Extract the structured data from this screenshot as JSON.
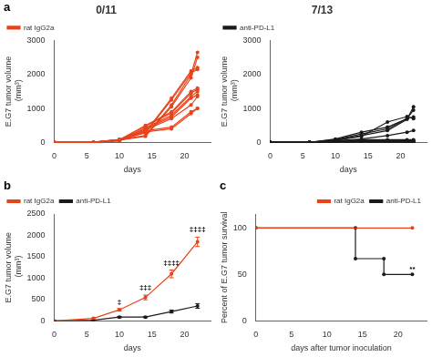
{
  "chart_data": [
    {
      "type": "line",
      "title": "0/11",
      "annotations": [
        {
          "text": "a"
        }
      ],
      "xlabel": "days",
      "ylabel": "E.G7 tumor volume\n (mm³)",
      "x": [
        0,
        6,
        10,
        14,
        18,
        21,
        22
      ],
      "series": [
        {
          "name": "rat IgG2a",
          "color": "#E8431A",
          "values": [
            0,
            5,
            80,
            200,
            1100,
            2000,
            2650
          ]
        },
        {
          "name": "rat IgG2a",
          "color": "#E8431A",
          "values": [
            0,
            5,
            70,
            180,
            1050,
            1900,
            2500
          ]
        },
        {
          "name": "rat IgG2a",
          "color": "#E8431A",
          "values": [
            0,
            5,
            90,
            300,
            1300,
            2100,
            2200
          ]
        },
        {
          "name": "rat IgG2a",
          "color": "#E8431A",
          "values": [
            0,
            5,
            85,
            280,
            1250,
            2050,
            2150
          ]
        },
        {
          "name": "rat IgG2a",
          "color": "#E8431A",
          "values": [
            0,
            5,
            75,
            500,
            900,
            1500,
            1600
          ]
        },
        {
          "name": "rat IgG2a",
          "color": "#E8431A",
          "values": [
            0,
            5,
            80,
            480,
            870,
            1450,
            1560
          ]
        },
        {
          "name": "rat IgG2a",
          "color": "#E8431A",
          "values": [
            0,
            5,
            65,
            430,
            800,
            1350,
            1500
          ]
        },
        {
          "name": "rat IgG2a",
          "color": "#E8431A",
          "values": [
            0,
            5,
            60,
            400,
            750,
            1300,
            1400
          ]
        },
        {
          "name": "rat IgG2a",
          "color": "#E8431A",
          "values": [
            0,
            5,
            55,
            370,
            700,
            1100,
            1350
          ]
        },
        {
          "name": "rat IgG2a",
          "color": "#E8431A",
          "values": [
            0,
            5,
            50,
            340,
            450,
            900,
            1000
          ]
        },
        {
          "name": "rat IgG2a",
          "color": "#E8431A",
          "values": [
            0,
            5,
            45,
            310,
            400,
            850,
            1000
          ]
        }
      ],
      "xlim": [
        0,
        24
      ],
      "xticks": [
        0,
        5,
        10,
        15,
        20
      ],
      "ylim": [
        0,
        3000
      ],
      "yticks": [
        0,
        1000,
        2000,
        3000
      ],
      "grid": false,
      "legend": "upper left",
      "marker": "o",
      "line_style": "solid"
    },
    {
      "type": "line",
      "title": "7/13",
      "xlabel": "days",
      "ylabel": "E.G7 tumor volume\n (mm³)",
      "x": [
        0,
        6,
        10,
        14,
        18,
        21,
        22
      ],
      "series": [
        {
          "name": "anti-PD-L1",
          "color": "#1A1A1A",
          "values": [
            0,
            3,
            100,
            300,
            450,
            700,
            750
          ]
        },
        {
          "name": "anti-PD-L1",
          "color": "#1A1A1A",
          "values": [
            0,
            3,
            80,
            250,
            400,
            700,
            950
          ]
        },
        {
          "name": "anti-PD-L1",
          "color": "#1A1A1A",
          "values": [
            0,
            3,
            70,
            200,
            350,
            680,
            1050
          ]
        },
        {
          "name": "anti-PD-L1",
          "color": "#1A1A1A",
          "values": [
            0,
            3,
            60,
            180,
            600,
            760,
            700
          ]
        },
        {
          "name": "anti-PD-L1",
          "color": "#1A1A1A",
          "values": [
            0,
            3,
            50,
            100,
            200,
            300,
            350
          ]
        },
        {
          "name": "anti-PD-L1",
          "color": "#1A1A1A",
          "values": [
            0,
            3,
            40,
            80,
            80,
            80,
            80
          ]
        },
        {
          "name": "anti-PD-L1",
          "color": "#1A1A1A",
          "values": [
            0,
            3,
            30,
            60,
            50,
            50,
            50
          ]
        },
        {
          "name": "anti-PD-L1",
          "color": "#1A1A1A",
          "values": [
            0,
            3,
            20,
            40,
            30,
            20,
            20
          ]
        },
        {
          "name": "anti-PD-L1",
          "color": "#1A1A1A",
          "values": [
            0,
            3,
            10,
            20,
            20,
            10,
            10
          ]
        },
        {
          "name": "anti-PD-L1",
          "color": "#1A1A1A",
          "values": [
            0,
            3,
            8,
            15,
            10,
            5,
            5
          ]
        },
        {
          "name": "anti-PD-L1",
          "color": "#1A1A1A",
          "values": [
            0,
            3,
            5,
            10,
            5,
            5,
            5
          ]
        },
        {
          "name": "anti-PD-L1",
          "color": "#1A1A1A",
          "values": [
            0,
            3,
            3,
            5,
            3,
            3,
            3
          ]
        },
        {
          "name": "anti-PD-L1",
          "color": "#1A1A1A",
          "values": [
            0,
            3,
            2,
            3,
            2,
            2,
            2
          ]
        }
      ],
      "xlim": [
        0,
        24
      ],
      "xticks": [
        0,
        5,
        10,
        15,
        20
      ],
      "ylim": [
        0,
        3000
      ],
      "yticks": [
        0,
        1000,
        2000,
        3000
      ],
      "grid": false,
      "legend": "upper left",
      "marker": "o",
      "line_style": "solid"
    },
    {
      "type": "line",
      "annotations": [
        {
          "text": "b"
        },
        {
          "x": 10,
          "y": 320,
          "text": "‡"
        },
        {
          "x": 14,
          "y": 650,
          "text": "‡‡‡"
        },
        {
          "x": 18,
          "y": 1220,
          "text": "‡‡‡‡"
        },
        {
          "x": 22,
          "y": 2010,
          "text": "‡‡‡‡"
        }
      ],
      "xlabel": "days",
      "ylabel": "E.G7 tumor volume\n (mm³)",
      "x": [
        0,
        6,
        10,
        14,
        18,
        22
      ],
      "series": [
        {
          "name": "rat IgG2a",
          "color": "#E8431A",
          "values": [
            0,
            60,
            260,
            550,
            1100,
            1850
          ],
          "errors": [
            0,
            8,
            30,
            55,
            90,
            110
          ]
        },
        {
          "name": "anti-PD-L1",
          "color": "#1A1A1A",
          "values": [
            0,
            15,
            90,
            90,
            220,
            350
          ],
          "errors": [
            0,
            5,
            15,
            15,
            35,
            55
          ]
        }
      ],
      "xlim": [
        0,
        24
      ],
      "xticks": [
        0,
        5,
        10,
        15,
        20
      ],
      "ylim": [
        0,
        2500
      ],
      "yticks": [
        0,
        500,
        1000,
        1500,
        2000,
        2500
      ],
      "grid": false,
      "legend": "upper left",
      "marker": "o",
      "line_style": "solid"
    },
    {
      "type": "line",
      "annotations": [
        {
          "text": "c"
        },
        {
          "x": 22,
          "y": 50,
          "text": "**"
        }
      ],
      "xlabel": "days after tumor inoculation",
      "ylabel": "Percent of E.G7 tumor survival",
      "series": [
        {
          "name": "rat IgG2a",
          "color": "#E8431A",
          "x": [
            0,
            22
          ],
          "values": [
            100,
            100
          ]
        },
        {
          "name": "anti-PD-L1",
          "color": "#1A1A1A",
          "x": [
            0,
            14,
            14,
            18,
            18,
            22
          ],
          "values": [
            100,
            100,
            67,
            67,
            50,
            50
          ]
        }
      ],
      "xlim": [
        0,
        24
      ],
      "xticks": [
        0,
        5,
        10,
        15,
        20
      ],
      "ylim": [
        0,
        115
      ],
      "yticks": [
        0,
        50,
        100
      ],
      "grid": false,
      "legend": "upper right",
      "marker": "o",
      "line_style": "solid"
    }
  ]
}
